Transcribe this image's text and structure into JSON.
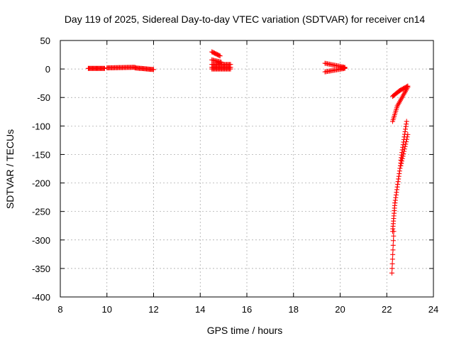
{
  "chart_data": {
    "type": "scatter",
    "title": "Day 119 of 2025, Sidereal Day-to-day VTEC variation (SDTVAR) for receiver cn14",
    "xlabel": "GPS time / hours",
    "ylabel": "SDTVAR / TECUs",
    "xlim": [
      8,
      24
    ],
    "ylim": [
      -400,
      50
    ],
    "xticks": [
      8,
      10,
      12,
      14,
      16,
      18,
      20,
      22,
      24
    ],
    "yticks": [
      50,
      0,
      -50,
      -100,
      -150,
      -200,
      -250,
      -300,
      -350,
      -400
    ],
    "grid": true,
    "marker": "+",
    "color": "#ff0000",
    "series": [
      {
        "name": "SDTVAR",
        "segments": [
          {
            "x0": 9.2,
            "x1": 9.9,
            "y0": 1,
            "y1": 1,
            "n": 22
          },
          {
            "x0": 10.0,
            "x1": 11.2,
            "y0": 2,
            "y1": 3,
            "n": 30
          },
          {
            "x0": 11.2,
            "x1": 12.0,
            "y0": 2,
            "y1": -1,
            "n": 22
          },
          {
            "x0": 14.5,
            "x1": 14.85,
            "y0": 30,
            "y1": 23,
            "n": 10
          },
          {
            "x0": 14.5,
            "x1": 14.9,
            "y0": 16,
            "y1": 12,
            "n": 10
          },
          {
            "x0": 14.5,
            "x1": 15.3,
            "y0": 8,
            "y1": 8,
            "n": 20
          },
          {
            "x0": 14.5,
            "x1": 15.3,
            "y0": 3,
            "y1": 3,
            "n": 20
          },
          {
            "x0": 14.5,
            "x1": 15.3,
            "y0": 0,
            "y1": 0,
            "n": 20
          },
          {
            "x0": 19.35,
            "x1": 20.2,
            "y0": 10,
            "y1": 3,
            "n": 18
          },
          {
            "x0": 19.35,
            "x1": 20.2,
            "y0": -5,
            "y1": 1,
            "n": 18
          },
          {
            "x0": 20.0,
            "x1": 20.2,
            "y0": 2,
            "y1": 2,
            "n": 8
          },
          {
            "x0": 22.25,
            "x1": 22.55,
            "y0": -48,
            "y1": -38,
            "n": 10
          },
          {
            "x0": 22.55,
            "x1": 22.9,
            "y0": -38,
            "y1": -30,
            "n": 10
          },
          {
            "x0": 22.25,
            "x1": 22.45,
            "y0": -92,
            "y1": -65,
            "n": 10
          },
          {
            "x0": 22.45,
            "x1": 22.9,
            "y0": -65,
            "y1": -32,
            "n": 14
          },
          {
            "x0": 22.85,
            "x1": 22.6,
            "y0": -92,
            "y1": -160,
            "n": 16
          },
          {
            "x0": 22.9,
            "x1": 22.6,
            "y0": -115,
            "y1": -170,
            "n": 14
          },
          {
            "x0": 22.6,
            "x1": 22.35,
            "y0": -165,
            "y1": -235,
            "n": 16
          },
          {
            "x0": 22.35,
            "x1": 22.25,
            "y0": -235,
            "y1": -285,
            "n": 12
          },
          {
            "x0": 22.3,
            "x1": 22.22,
            "y0": -285,
            "y1": -358,
            "n": 10
          }
        ]
      }
    ]
  }
}
